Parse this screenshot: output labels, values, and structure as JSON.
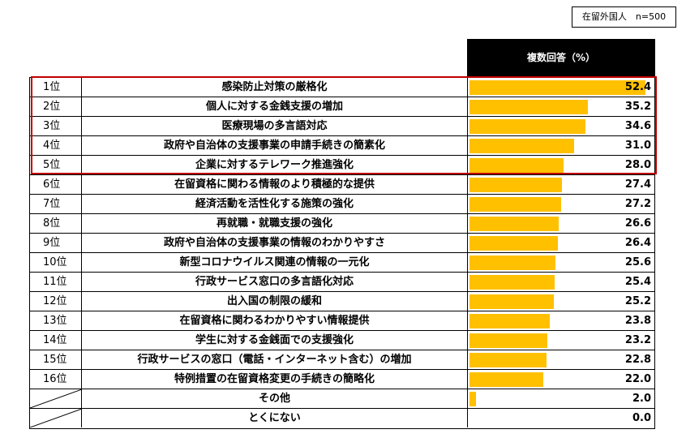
{
  "sample_label": "在留外国人　n=500",
  "column_header": "複数回答（%）",
  "chart_data": {
    "type": "bar",
    "orientation": "horizontal",
    "xlim": [
      0,
      55
    ],
    "bar_color": "#FFC000",
    "highlight_color": "#C00000",
    "rows": [
      {
        "rank": "1位",
        "label": "感染防止対策の厳格化",
        "value": 52.4
      },
      {
        "rank": "2位",
        "label": "個人に対する金銭支援の増加",
        "value": 35.2
      },
      {
        "rank": "3位",
        "label": "医療現場の多言語対応",
        "value": 34.6
      },
      {
        "rank": "4位",
        "label": "政府や自治体の支援事業の申請手続きの簡素化",
        "value": 31.0
      },
      {
        "rank": "5位",
        "label": "企業に対するテレワーク推進強化",
        "value": 28.0
      },
      {
        "rank": "6位",
        "label": "在留資格に関わる情報のより積極的な提供",
        "value": 27.4
      },
      {
        "rank": "7位",
        "label": "経済活動を活性化する施策の強化",
        "value": 27.2
      },
      {
        "rank": "8位",
        "label": "再就職・就職支援の強化",
        "value": 26.6
      },
      {
        "rank": "9位",
        "label": "政府や自治体の支援事業の情報のわかりやすさ",
        "value": 26.4
      },
      {
        "rank": "10位",
        "label": "新型コロナウイルス関連の情報の一元化",
        "value": 25.6
      },
      {
        "rank": "11位",
        "label": "行政サービス窓口の多言語化対応",
        "value": 25.4
      },
      {
        "rank": "12位",
        "label": "出入国の制限の緩和",
        "value": 25.2
      },
      {
        "rank": "13位",
        "label": "在留資格に関わるわかりやすい情報提供",
        "value": 23.8
      },
      {
        "rank": "14位",
        "label": "学生に対する金銭面での支援強化",
        "value": 23.2
      },
      {
        "rank": "15位",
        "label": "行政サービスの窓口（電話・インターネット含む）の増加",
        "value": 22.8
      },
      {
        "rank": "16位",
        "label": "特例措置の在留資格変更の手続きの簡略化",
        "value": 22.0
      },
      {
        "rank": "",
        "label": "その他",
        "value": 2.0
      },
      {
        "rank": "",
        "label": "とくにない",
        "value": 0.0
      }
    ]
  }
}
